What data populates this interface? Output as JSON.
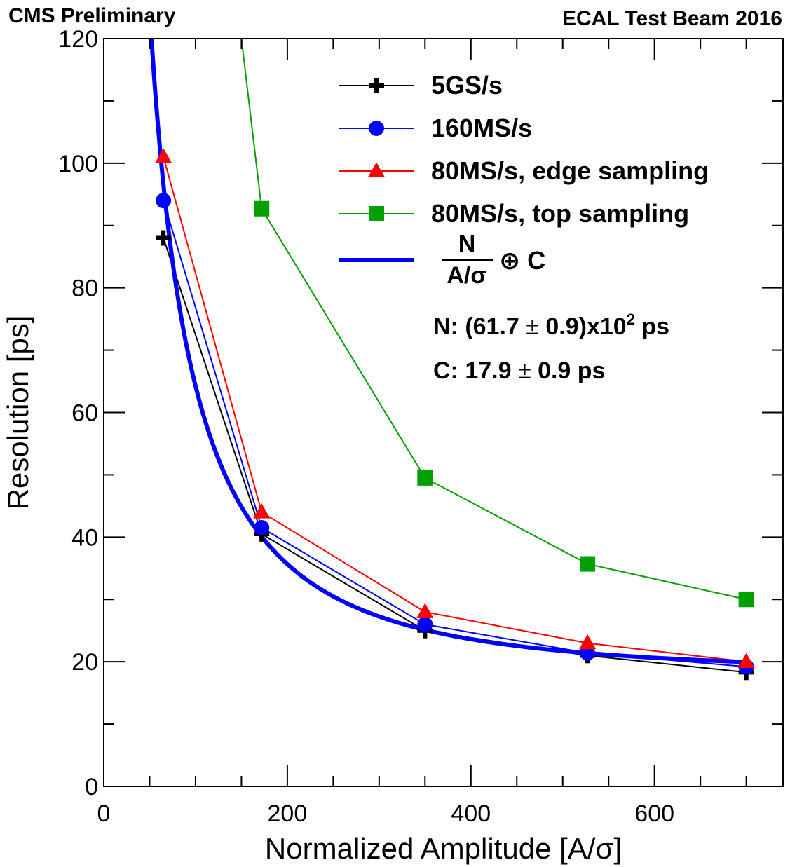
{
  "header": {
    "left": "CMS Preliminary",
    "right": "ECAL Test Beam 2016"
  },
  "chart_data": {
    "type": "line",
    "xlabel": "Normalized Amplitude [A/σ]",
    "ylabel": "Resolution [ps]",
    "xlim": [
      0,
      740
    ],
    "ylim": [
      0,
      120
    ],
    "x_ticks": [
      "0",
      "200",
      "400",
      "600"
    ],
    "y_ticks": [
      "0",
      "20",
      "40",
      "60",
      "80",
      "100",
      "120"
    ],
    "grid": false,
    "legend_position": "top-right",
    "series": [
      {
        "name": "5GS/s",
        "color": "#000000",
        "marker": "cross",
        "x": [
          65,
          172,
          350,
          527,
          700
        ],
        "y": [
          88,
          40.5,
          25,
          21,
          18.3
        ]
      },
      {
        "name": "160MS/s",
        "color": "#0000ff",
        "marker": "circle",
        "x": [
          65,
          172,
          350,
          527,
          700
        ],
        "y": [
          94,
          41.5,
          26,
          21.4,
          19.2
        ]
      },
      {
        "name": "80MS/s, edge sampling",
        "color": "#ff0000",
        "marker": "triangle",
        "x": [
          65,
          172,
          350,
          527,
          700
        ],
        "y": [
          101,
          44,
          28,
          23,
          20
        ]
      },
      {
        "name": "80MS/s, top sampling",
        "color": "#00a000",
        "marker": "square",
        "x": [
          150,
          172,
          350,
          527,
          700
        ],
        "y": [
          120,
          92.7,
          49.5,
          35.7,
          30
        ]
      }
    ],
    "fit": {
      "color": "#0000ff",
      "N": 6170,
      "C": 17.9,
      "x_range": [
        51,
        700
      ],
      "legend_num": "N",
      "legend_den": "A/σ",
      "legend_op": "⊕ C"
    },
    "annotations": [
      {
        "prefix": "N: (61.7 ",
        "pm": "±",
        "mid": " 0.9)x10",
        "sup": "2",
        "suffix": " ps"
      },
      {
        "prefix": "C: 17.9 ",
        "pm": "±",
        "mid": " 0.9 ps",
        "sup": "",
        "suffix": ""
      }
    ]
  }
}
